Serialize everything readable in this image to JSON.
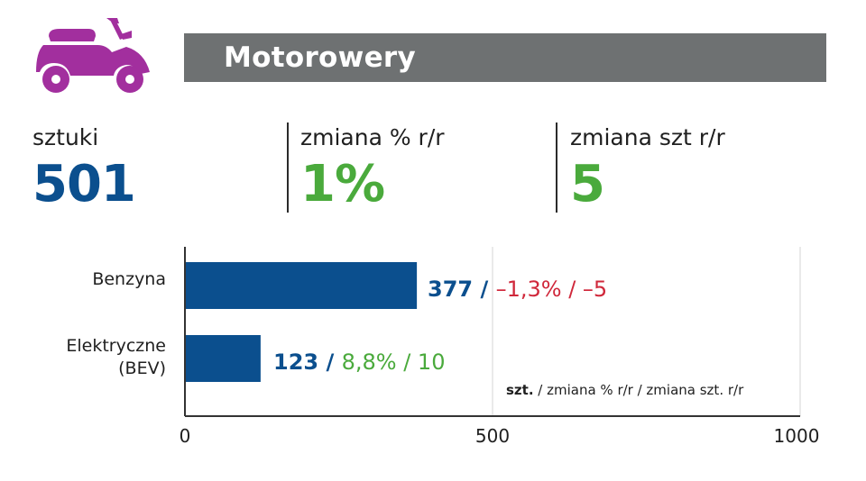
{
  "header": {
    "title": "Motorowery",
    "icon": "scooter-icon",
    "icon_color": "#a22f9e",
    "banner_color": "#6e7172"
  },
  "stats": [
    {
      "label": "sztuki",
      "value": "501",
      "color": "#0b4f8e"
    },
    {
      "label": "zmiana % r/r",
      "value": "1%",
      "color": "#4aaa3c"
    },
    {
      "label": "zmiana szt r/r",
      "value": "5",
      "color": "#4aaa3c"
    }
  ],
  "chart_data": {
    "type": "bar",
    "orientation": "horizontal",
    "categories": [
      "Benzyna",
      "Elektryczne (BEV)"
    ],
    "values": [
      377,
      123
    ],
    "pct_change": [
      "–1,3%",
      "8,8%"
    ],
    "unit_change": [
      "–5",
      "10"
    ],
    "change_colors": [
      "#d0283b",
      "#4aaa3c"
    ],
    "bar_color": "#0b4f8e",
    "xlim": [
      0,
      1000
    ],
    "xticks": [
      "0",
      "500",
      "1000"
    ],
    "grid": true,
    "note_bold": "szt.",
    "note_rest": " / zmiana % r/r / zmiana szt. r/r"
  }
}
